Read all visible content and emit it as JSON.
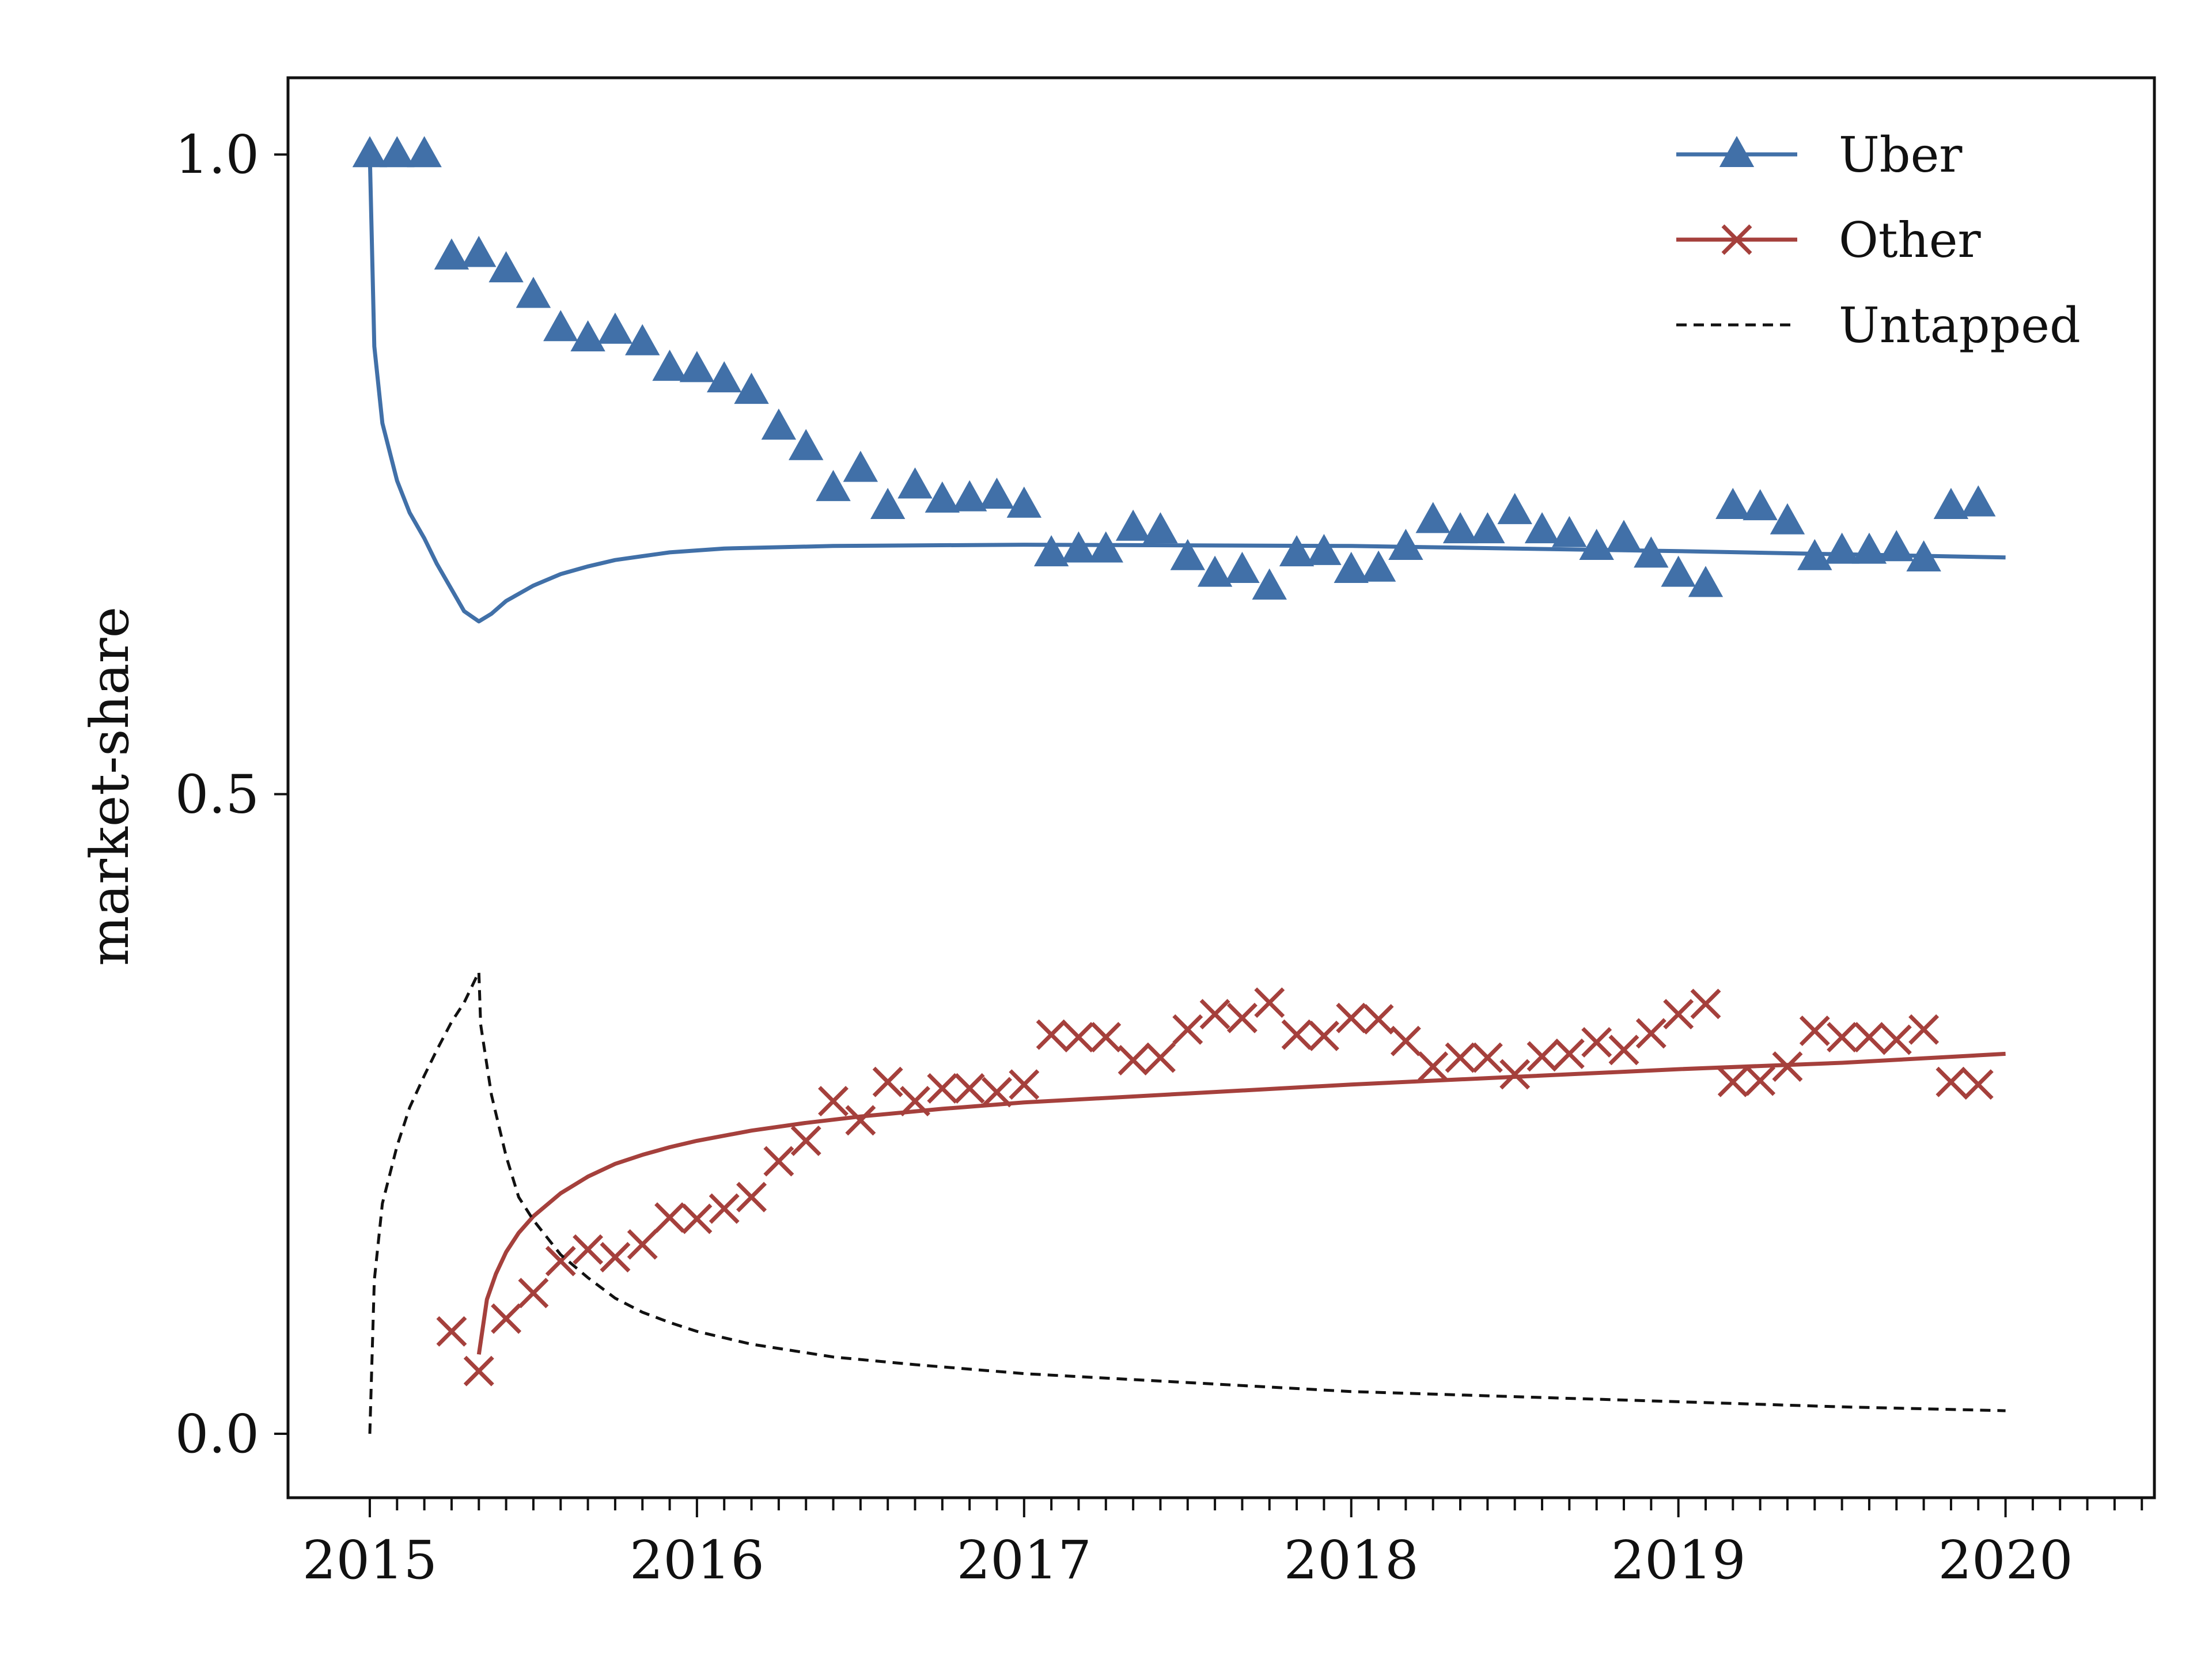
{
  "chart_data": {
    "type": "line",
    "title": "",
    "xlabel": "",
    "ylabel": "market-share",
    "xlim": [
      "2014-10-01",
      "2020-06-15"
    ],
    "ylim": [
      -0.05,
      1.06
    ],
    "x_ticks": [
      "2015",
      "2016",
      "2017",
      "2018",
      "2019",
      "2020"
    ],
    "y_ticks": [
      "0.0",
      "0.5",
      "1.0"
    ],
    "y_tick_values": [
      0.0,
      0.5,
      1.0
    ],
    "minor_x_ticks": "monthly",
    "grid": false,
    "legend_position": "top-right",
    "series": [
      {
        "name": "Uber",
        "color": "#4170a8",
        "marker": "triangle-up",
        "observed": [
          [
            "2015-01",
            1.0
          ],
          [
            "2015-02",
            1.0
          ],
          [
            "2015-03",
            1.0
          ],
          [
            "2015-04",
            0.92
          ],
          [
            "2015-05",
            0.922
          ],
          [
            "2015-06",
            0.91
          ],
          [
            "2015-07",
            0.89
          ],
          [
            "2015-08",
            0.864
          ],
          [
            "2015-09",
            0.856
          ],
          [
            "2015-10",
            0.862
          ],
          [
            "2015-11",
            0.853
          ],
          [
            "2015-12",
            0.833
          ],
          [
            "2016-01",
            0.832
          ],
          [
            "2016-02",
            0.824
          ],
          [
            "2016-03",
            0.815
          ],
          [
            "2016-04",
            0.787
          ],
          [
            "2016-05",
            0.771
          ],
          [
            "2016-06",
            0.739
          ],
          [
            "2016-07",
            0.754
          ],
          [
            "2016-08",
            0.725
          ],
          [
            "2016-09",
            0.741
          ],
          [
            "2016-10",
            0.73
          ],
          [
            "2016-11",
            0.731
          ],
          [
            "2016-12",
            0.733
          ],
          [
            "2017-01",
            0.726
          ],
          [
            "2017-02",
            0.688
          ],
          [
            "2017-03",
            0.691
          ],
          [
            "2017-04",
            0.691
          ],
          [
            "2017-05",
            0.708
          ],
          [
            "2017-06",
            0.706
          ],
          [
            "2017-07",
            0.685
          ],
          [
            "2017-08",
            0.672
          ],
          [
            "2017-09",
            0.675
          ],
          [
            "2017-10",
            0.662
          ],
          [
            "2017-11",
            0.688
          ],
          [
            "2017-12",
            0.689
          ],
          [
            "2018-01",
            0.675
          ],
          [
            "2018-02",
            0.676
          ],
          [
            "2018-03",
            0.693
          ],
          [
            "2018-04",
            0.714
          ],
          [
            "2018-05",
            0.706
          ],
          [
            "2018-06",
            0.706
          ],
          [
            "2018-07",
            0.721
          ],
          [
            "2018-08",
            0.706
          ],
          [
            "2018-09",
            0.703
          ],
          [
            "2018-10",
            0.693
          ],
          [
            "2018-11",
            0.7
          ],
          [
            "2018-12",
            0.687
          ],
          [
            "2019-01",
            0.672
          ],
          [
            "2019-02",
            0.664
          ],
          [
            "2019-03",
            0.725
          ],
          [
            "2019-04",
            0.724
          ],
          [
            "2019-05",
            0.713
          ],
          [
            "2019-06",
            0.685
          ],
          [
            "2019-07",
            0.69
          ],
          [
            "2019-08",
            0.69
          ],
          [
            "2019-09",
            0.692
          ],
          [
            "2019-10",
            0.684
          ],
          [
            "2019-11",
            0.725
          ],
          [
            "2019-12",
            0.727
          ]
        ],
        "fitted": [
          [
            "2015-01-01",
            1.0
          ],
          [
            "2015-01-06",
            0.85
          ],
          [
            "2015-01-15",
            0.79
          ],
          [
            "2015-02-01",
            0.745
          ],
          [
            "2015-02-15",
            0.72
          ],
          [
            "2015-03-01",
            0.7
          ],
          [
            "2015-03-15",
            0.68
          ],
          [
            "2015-04-01",
            0.66
          ],
          [
            "2015-04-15",
            0.643
          ],
          [
            "2015-05-01",
            0.635
          ],
          [
            "2015-05-15",
            0.641
          ],
          [
            "2015-06-01",
            0.651
          ],
          [
            "2015-07-01",
            0.663
          ],
          [
            "2015-08-01",
            0.672
          ],
          [
            "2015-09-01",
            0.678
          ],
          [
            "2015-10-01",
            0.683
          ],
          [
            "2015-11-01",
            0.686
          ],
          [
            "2015-12-01",
            0.689
          ],
          [
            "2016-02-01",
            0.692
          ],
          [
            "2016-06-01",
            0.694
          ],
          [
            "2017-01-01",
            0.695
          ],
          [
            "2018-01-01",
            0.694
          ],
          [
            "2019-01-01",
            0.69
          ],
          [
            "2020-01-01",
            0.685
          ]
        ]
      },
      {
        "name": "Other",
        "color": "#a5403c",
        "marker": "x",
        "observed": [
          [
            "2015-04",
            0.08
          ],
          [
            "2015-05",
            0.049
          ],
          [
            "2015-06",
            0.09
          ],
          [
            "2015-07",
            0.11
          ],
          [
            "2015-08",
            0.135
          ],
          [
            "2015-09",
            0.144
          ],
          [
            "2015-10",
            0.138
          ],
          [
            "2015-11",
            0.148
          ],
          [
            "2015-12",
            0.169
          ],
          [
            "2016-01",
            0.168
          ],
          [
            "2016-02",
            0.176
          ],
          [
            "2016-03",
            0.185
          ],
          [
            "2016-04",
            0.213
          ],
          [
            "2016-05",
            0.229
          ],
          [
            "2016-06",
            0.26
          ],
          [
            "2016-07",
            0.245
          ],
          [
            "2016-08",
            0.275
          ],
          [
            "2016-09",
            0.26
          ],
          [
            "2016-10",
            0.27
          ],
          [
            "2016-11",
            0.27
          ],
          [
            "2016-12",
            0.267
          ],
          [
            "2017-01",
            0.273
          ],
          [
            "2017-02",
            0.312
          ],
          [
            "2017-03",
            0.31
          ],
          [
            "2017-04",
            0.31
          ],
          [
            "2017-05",
            0.292
          ],
          [
            "2017-06",
            0.294
          ],
          [
            "2017-07",
            0.316
          ],
          [
            "2017-08",
            0.328
          ],
          [
            "2017-09",
            0.325
          ],
          [
            "2017-10",
            0.337
          ],
          [
            "2017-11",
            0.312
          ],
          [
            "2017-12",
            0.311
          ],
          [
            "2018-01",
            0.325
          ],
          [
            "2018-02",
            0.324
          ],
          [
            "2018-03",
            0.307
          ],
          [
            "2018-04",
            0.287
          ],
          [
            "2018-05",
            0.294
          ],
          [
            "2018-06",
            0.294
          ],
          [
            "2018-07",
            0.281
          ],
          [
            "2018-08",
            0.295
          ],
          [
            "2018-09",
            0.297
          ],
          [
            "2018-10",
            0.306
          ],
          [
            "2018-11",
            0.3
          ],
          [
            "2018-12",
            0.313
          ],
          [
            "2019-01",
            0.328
          ],
          [
            "2019-02",
            0.336
          ],
          [
            "2019-03",
            0.275
          ],
          [
            "2019-04",
            0.276
          ],
          [
            "2019-05",
            0.287
          ],
          [
            "2019-06",
            0.315
          ],
          [
            "2019-07",
            0.31
          ],
          [
            "2019-08",
            0.31
          ],
          [
            "2019-09",
            0.308
          ],
          [
            "2019-10",
            0.316
          ],
          [
            "2019-11",
            0.275
          ],
          [
            "2019-12",
            0.273
          ]
        ],
        "fitted": [
          [
            "2015-05-01",
            0.062
          ],
          [
            "2015-05-10",
            0.105
          ],
          [
            "2015-05-20",
            0.125
          ],
          [
            "2015-06-01",
            0.142
          ],
          [
            "2015-06-15",
            0.157
          ],
          [
            "2015-07-01",
            0.17
          ],
          [
            "2015-08-01",
            0.188
          ],
          [
            "2015-09-01",
            0.201
          ],
          [
            "2015-10-01",
            0.211
          ],
          [
            "2015-11-01",
            0.218
          ],
          [
            "2015-12-01",
            0.224
          ],
          [
            "2016-01-01",
            0.229
          ],
          [
            "2016-03-01",
            0.237
          ],
          [
            "2016-05-01",
            0.243
          ],
          [
            "2016-07-01",
            0.248
          ],
          [
            "2016-10-01",
            0.254
          ],
          [
            "2017-01-01",
            0.259
          ],
          [
            "2017-07-01",
            0.266
          ],
          [
            "2018-01-01",
            0.273
          ],
          [
            "2018-07-01",
            0.279
          ],
          [
            "2019-01-01",
            0.285
          ],
          [
            "2019-07-01",
            0.29
          ],
          [
            "2020-01-01",
            0.297
          ]
        ]
      },
      {
        "name": "Untapped",
        "color": "#111111",
        "marker": "none",
        "dashed": true,
        "fitted": [
          [
            "2015-01-01",
            0.0
          ],
          [
            "2015-01-06",
            0.12
          ],
          [
            "2015-01-15",
            0.18
          ],
          [
            "2015-02-01",
            0.225
          ],
          [
            "2015-02-15",
            0.255
          ],
          [
            "2015-03-01",
            0.28
          ],
          [
            "2015-03-15",
            0.3
          ],
          [
            "2015-04-01",
            0.322
          ],
          [
            "2015-04-15",
            0.337
          ],
          [
            "2015-05-01",
            0.361
          ],
          [
            "2015-05-03",
            0.32
          ],
          [
            "2015-05-15",
            0.265
          ],
          [
            "2015-06-01",
            0.217
          ],
          [
            "2015-06-15",
            0.185
          ],
          [
            "2015-07-01",
            0.167
          ],
          [
            "2015-08-01",
            0.14
          ],
          [
            "2015-09-01",
            0.122
          ],
          [
            "2015-10-01",
            0.106
          ],
          [
            "2015-11-01",
            0.095
          ],
          [
            "2015-12-01",
            0.087
          ],
          [
            "2016-01-01",
            0.08
          ],
          [
            "2016-03-01",
            0.07
          ],
          [
            "2016-06-01",
            0.06
          ],
          [
            "2016-09-01",
            0.054
          ],
          [
            "2017-01-01",
            0.047
          ],
          [
            "2017-07-01",
            0.04
          ],
          [
            "2018-01-01",
            0.033
          ],
          [
            "2018-07-01",
            0.029
          ],
          [
            "2019-01-01",
            0.025
          ],
          [
            "2019-07-01",
            0.021
          ],
          [
            "2020-01-01",
            0.018
          ]
        ]
      }
    ]
  }
}
